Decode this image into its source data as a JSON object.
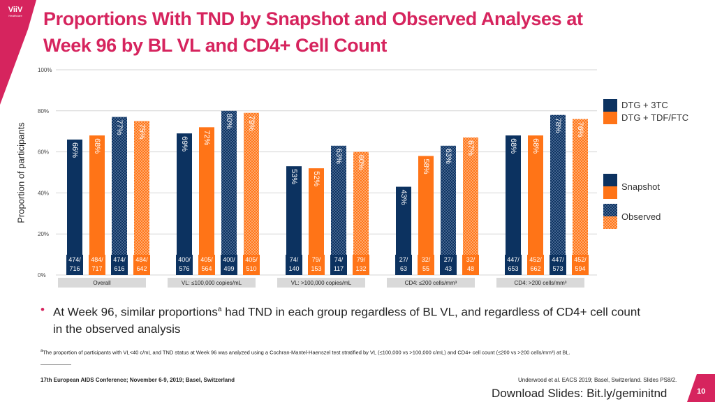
{
  "header": {
    "logo_text": "ViiV",
    "logo_sub": "Healthcare",
    "title_line1": "Proportions With TND by Snapshot and Observed Analyses at",
    "title_line2": "Week 96 by BL VL and CD4+ Cell Count"
  },
  "legend": {
    "arm1": "DTG + 3TC",
    "arm2": "DTG + TDF/FTC",
    "snapshot": "Snapshot",
    "observed": "Observed"
  },
  "colors": {
    "brand": "#d6245e",
    "dtg3tc": "#0c3260",
    "tdfftc": "#ff7417"
  },
  "chart_data": {
    "type": "bar",
    "title": "Proportions With TND by Snapshot and Observed Analyses at Week 96 by BL VL and CD4+ Cell Count",
    "ylabel": "Proportion of participants",
    "ylim": [
      0,
      100
    ],
    "yticks": [
      "0%",
      "20%",
      "40%",
      "60%",
      "80%",
      "100%"
    ],
    "bar_order": [
      "DTG + 3TC Snapshot",
      "DTG + TDF/FTC Snapshot",
      "DTG + 3TC Observed",
      "DTG + TDF/FTC Observed"
    ],
    "groups": [
      {
        "label": "Overall",
        "values": [
          66,
          68,
          77,
          75
        ],
        "labels": [
          "66%",
          "68%",
          "77%",
          "75%"
        ],
        "counts": [
          [
            "474/",
            "716"
          ],
          [
            "484/",
            "717"
          ],
          [
            "474/",
            "616"
          ],
          [
            "484/",
            "642"
          ]
        ]
      },
      {
        "label": "VL: ≤100,000 copies/mL",
        "values": [
          69,
          72,
          80,
          79
        ],
        "labels": [
          "69%",
          "72%",
          "80%",
          "79%"
        ],
        "counts": [
          [
            "400/",
            "576"
          ],
          [
            "405/",
            "564"
          ],
          [
            "400/",
            "499"
          ],
          [
            "405/",
            "510"
          ]
        ]
      },
      {
        "label": "VL: >100,000 copies/mL",
        "values": [
          53,
          52,
          63,
          60
        ],
        "labels": [
          "53%",
          "52%",
          "63%",
          "60%"
        ],
        "counts": [
          [
            "74/",
            "140"
          ],
          [
            "79/",
            "153"
          ],
          [
            "74/",
            "117"
          ],
          [
            "79/",
            "132"
          ]
        ]
      },
      {
        "label": "CD4: ≤200 cells/mm³",
        "values": [
          43,
          58,
          63,
          67
        ],
        "labels": [
          "43%",
          "58%",
          "63%",
          "67%"
        ],
        "counts": [
          [
            "27/",
            "63"
          ],
          [
            "32/",
            "55"
          ],
          [
            "27/",
            "43"
          ],
          [
            "32/",
            "48"
          ]
        ]
      },
      {
        "label": "CD4: >200 cells/mm³",
        "values": [
          68,
          68,
          78,
          76
        ],
        "labels": [
          "68%",
          "68%",
          "78%",
          "76%"
        ],
        "counts": [
          [
            "447/",
            "653"
          ],
          [
            "452/",
            "662"
          ],
          [
            "447/",
            "573"
          ],
          [
            "452/",
            "594"
          ]
        ]
      }
    ]
  },
  "bullet": {
    "text_before": "At Week 96, similar proportions",
    "sup": "a",
    "text_after": " had TND in each group regardless of BL VL, and regardless of CD4+ cell count in the observed analysis"
  },
  "footnote": {
    "sup": "a",
    "text": "The proportion of participants with VL<40 c/mL and TND status at Week 96 was analyzed using a Cochran-Mantel-Haenszel test stratified by VL (≤100,000 vs >100,000 c/mL) and CD4+ cell count (≤200 vs >200 cells/mm³) at BL."
  },
  "footer": {
    "conference": "17th European AIDS Conference; November 6-9, 2019; Basel, Switzerland",
    "citation": "Underwood et al. EACS 2019; Basel, Switzerland. Slides PS8/2.",
    "download": "Download Slides: Bit.ly/geminitnd",
    "page_number": "10"
  }
}
